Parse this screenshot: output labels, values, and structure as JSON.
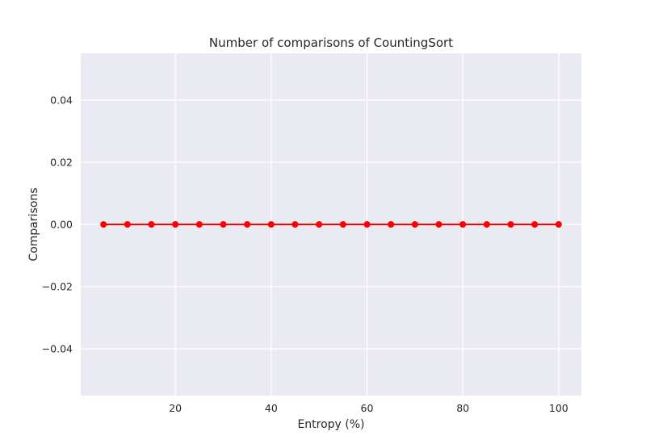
{
  "chart_data": {
    "type": "line",
    "title": "Number of comparisons of CountingSort",
    "xlabel": "Entropy (%)",
    "ylabel": "Comparisons",
    "x": [
      5,
      10,
      15,
      20,
      25,
      30,
      35,
      40,
      45,
      50,
      55,
      60,
      65,
      70,
      75,
      80,
      85,
      90,
      95,
      100
    ],
    "series": [
      {
        "values": [
          0,
          0,
          0,
          0,
          0,
          0,
          0,
          0,
          0,
          0,
          0,
          0,
          0,
          0,
          0,
          0,
          0,
          0,
          0,
          0
        ],
        "color": "#ff0000",
        "marker": "circle"
      }
    ],
    "xlim": [
      0.25,
      104.75
    ],
    "ylim": [
      -0.055,
      0.055
    ],
    "xticks": [
      20,
      40,
      60,
      80,
      100
    ],
    "xtick_labels": [
      "20",
      "40",
      "60",
      "80",
      "100"
    ],
    "yticks": [
      -0.04,
      -0.02,
      0.0,
      0.02,
      0.04
    ],
    "ytick_labels": [
      "−0.04",
      "−0.02",
      "0.00",
      "0.02",
      "0.04"
    ],
    "grid": true,
    "background_color": "#eaeaf2",
    "grid_color": "#ffffff"
  }
}
